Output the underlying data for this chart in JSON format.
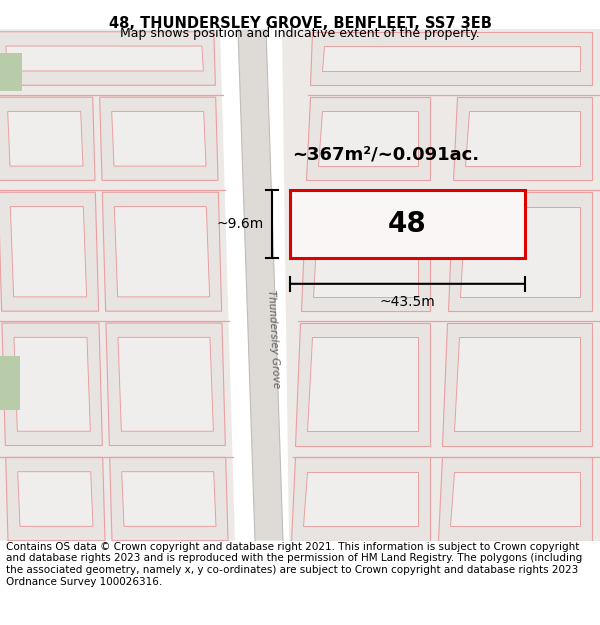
{
  "title": "48, THUNDERSLEY GROVE, BENFLEET, SS7 3EB",
  "subtitle": "Map shows position and indicative extent of the property.",
  "footer": "Contains OS data © Crown copyright and database right 2021. This information is subject to Crown copyright and database rights 2023 and is reproduced with the permission of HM Land Registry. The polygons (including the associated geometry, namely x, y co-ordinates) are subject to Crown copyright and database rights 2023 Ordnance Survey 100026316.",
  "map_bg": "#f5f2f0",
  "road_fill": "#dedad6",
  "plot_fill": "#e8e4e2",
  "inner_fill": "#f0eeec",
  "pink": "#e8a0a0",
  "red_rect": "#dd0000",
  "black": "#000000",
  "green": "#b8ccaa",
  "title_fontsize": 10.5,
  "subtitle_fontsize": 9,
  "footer_fontsize": 7.5,
  "area_text": "~367m²/~0.091ac.",
  "number_text": "48",
  "dim_width": "~43.5m",
  "dim_height": "~9.6m",
  "road_label": "Thundersley Grove"
}
